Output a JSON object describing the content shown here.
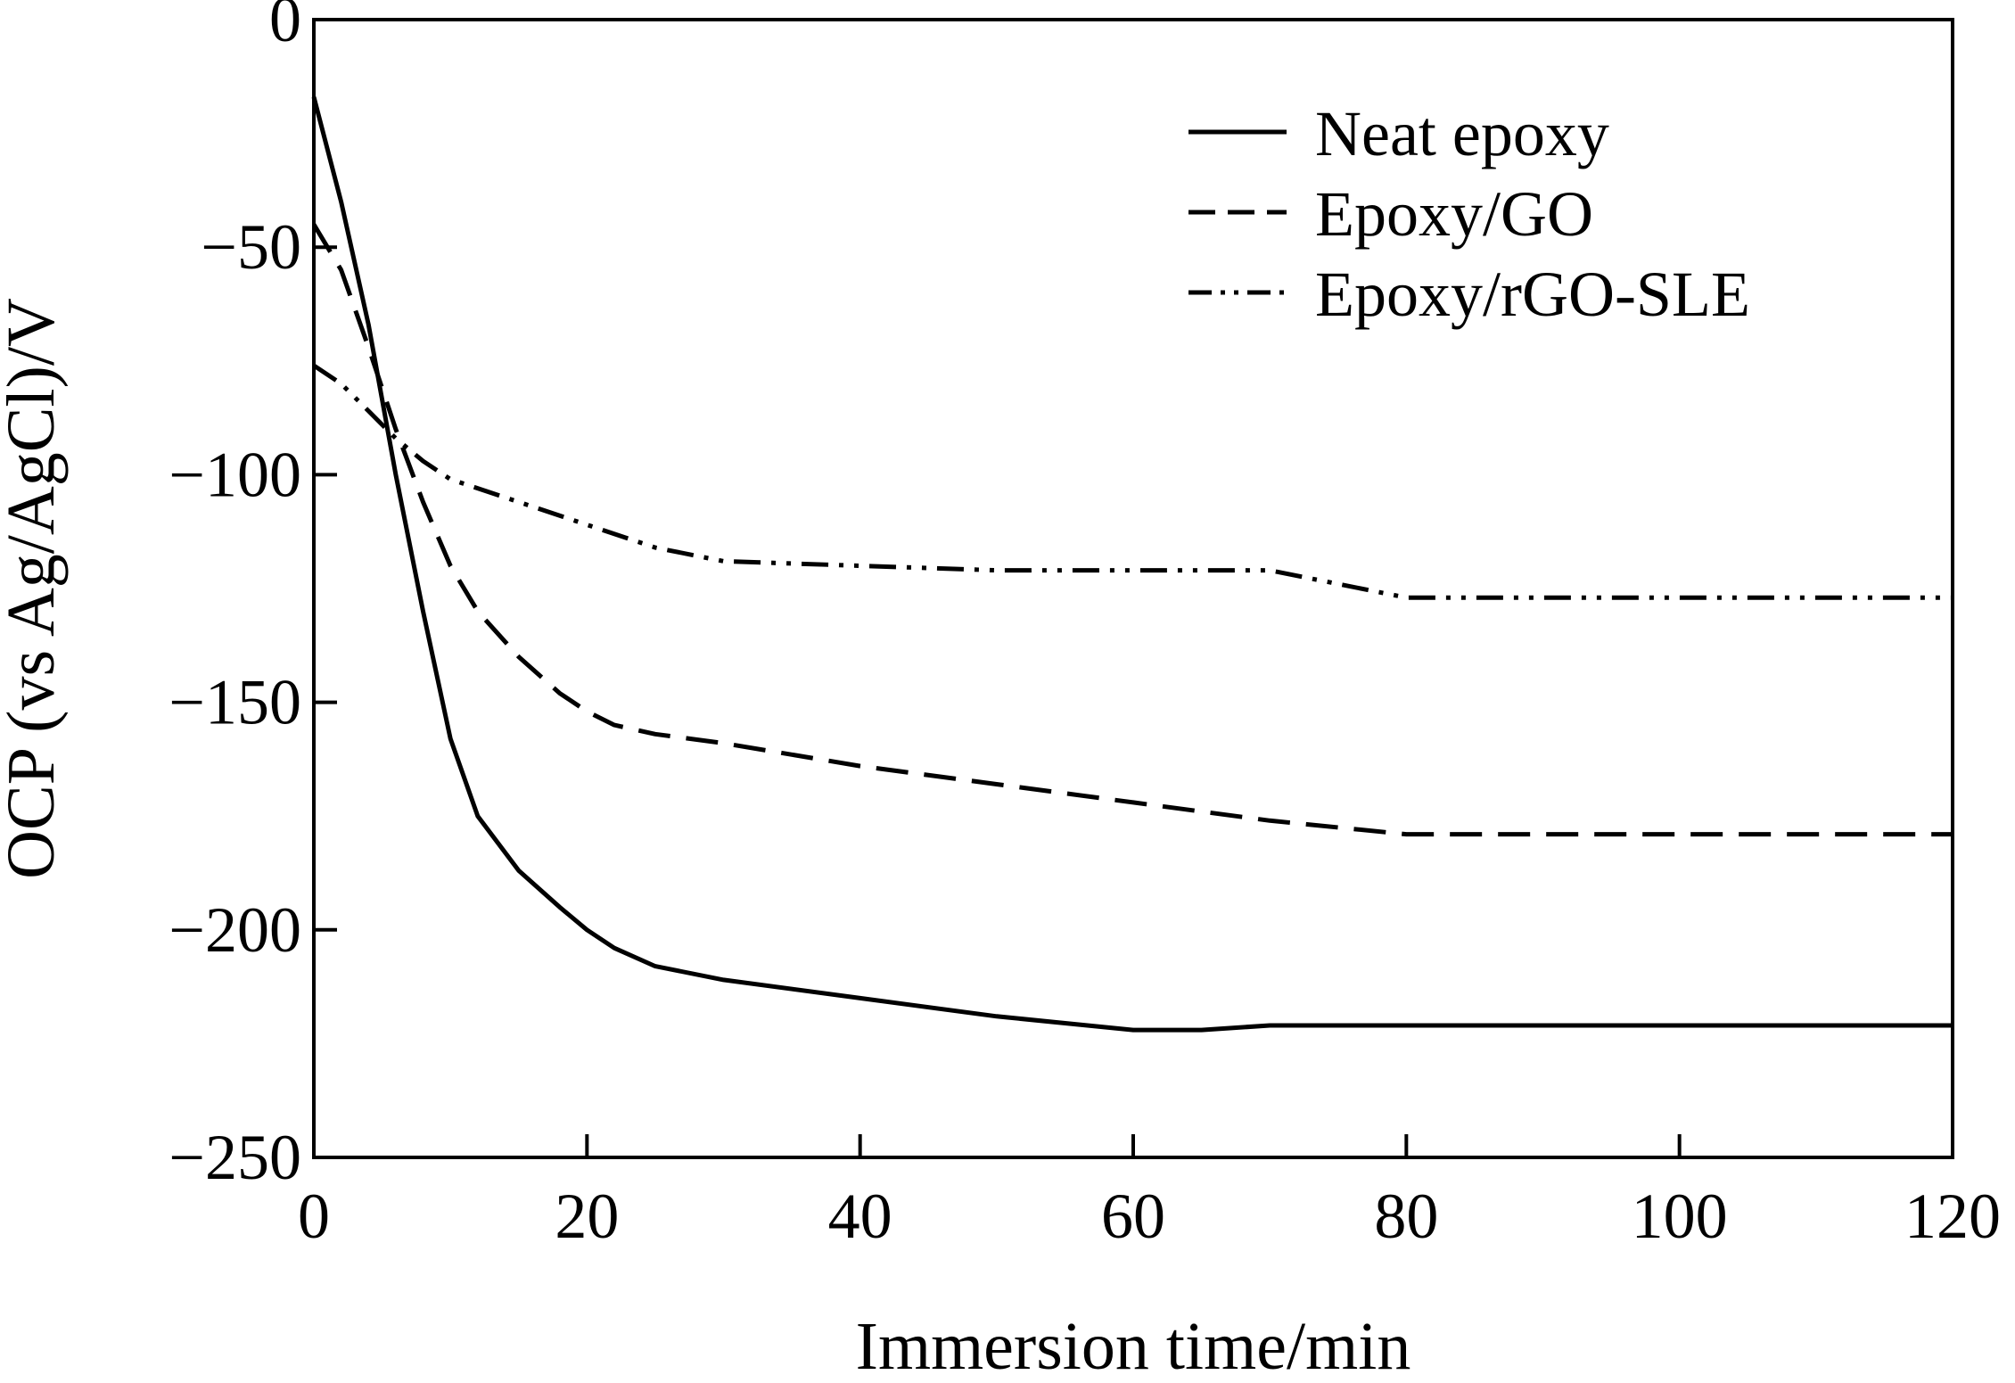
{
  "chart_data": {
    "type": "line",
    "title": "",
    "xlabel": "Immersion time/min",
    "ylabel": "OCP (vs Ag/AgCl)/V",
    "xlim": [
      0,
      120
    ],
    "ylim": [
      -250,
      0
    ],
    "xticks": [
      0,
      20,
      40,
      60,
      80,
      100,
      120
    ],
    "yticks": [
      0,
      -50,
      -100,
      -150,
      -200,
      -250
    ],
    "xtick_labels": [
      "0",
      "20",
      "40",
      "60",
      "80",
      "100",
      "120"
    ],
    "ytick_labels": [
      "0",
      "−50",
      "−100",
      "−150",
      "−200",
      "−250"
    ],
    "grid": false,
    "legend_position": "top-right",
    "series": [
      {
        "name": "Neat epoxy",
        "style": "solid",
        "x": [
          0,
          2,
          4,
          6,
          8,
          10,
          12,
          15,
          18,
          20,
          22,
          25,
          30,
          40,
          50,
          60,
          65,
          70,
          80,
          90,
          100,
          120
        ],
        "y": [
          -17,
          -40,
          -67,
          -100,
          -130,
          -158,
          -175,
          -187,
          -195,
          -200,
          -204,
          -208,
          -211,
          -215,
          -219,
          -222,
          -222,
          -221,
          -221,
          -221,
          -221,
          -221
        ]
      },
      {
        "name": "Epoxy/GO",
        "style": "dashed",
        "x": [
          0,
          2,
          4,
          6,
          8,
          10,
          12,
          15,
          18,
          20,
          22,
          25,
          30,
          40,
          50,
          60,
          70,
          80,
          90,
          100,
          120
        ],
        "y": [
          -45,
          -55,
          -72,
          -90,
          -106,
          -120,
          -130,
          -140,
          -148,
          -152,
          -155,
          -157,
          -159,
          -164,
          -168,
          -172,
          -176,
          -179,
          -179,
          -179,
          -179
        ]
      },
      {
        "name": "Epoxy/rGO-SLE",
        "style": "dash-dot-dot",
        "x": [
          0,
          2,
          4,
          6,
          8,
          10,
          15,
          20,
          25,
          30,
          40,
          50,
          60,
          70,
          75,
          80,
          90,
          100,
          120
        ],
        "y": [
          -76,
          -80,
          -86,
          -92,
          -97,
          -101,
          -106,
          -111,
          -116,
          -119,
          -120,
          -121,
          -121,
          -121,
          -124,
          -127,
          -127,
          -127,
          -127
        ]
      }
    ]
  }
}
